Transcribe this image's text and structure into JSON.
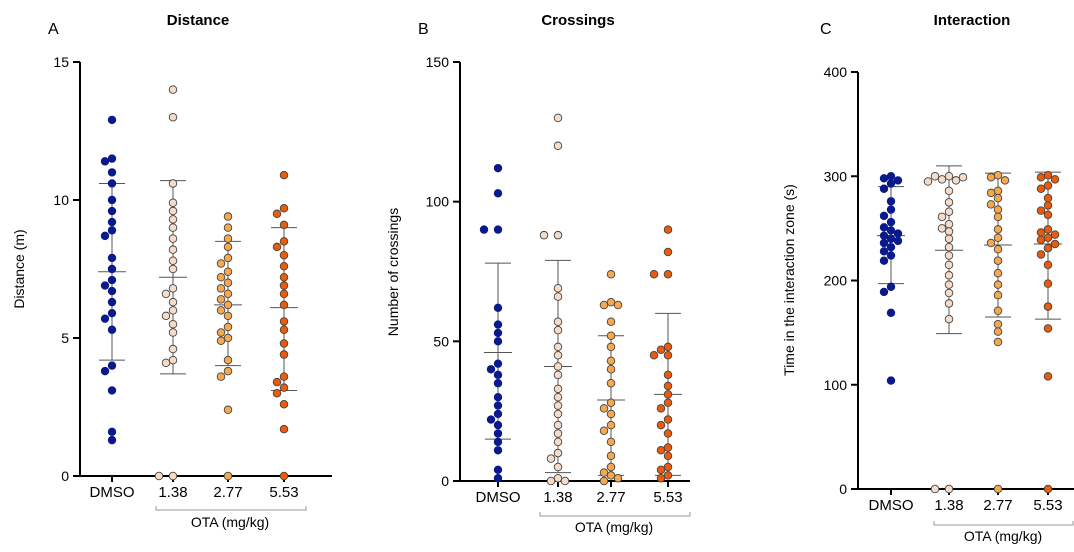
{
  "chart_data": [
    {
      "type": "scatter",
      "panel": "A",
      "title": "Distance",
      "ylabel": "Distance (m)",
      "ylim": [
        0,
        15
      ],
      "yticks": [
        "0",
        "5",
        "10",
        "15"
      ],
      "categories": [
        "DMSO",
        "1.38",
        "2.77",
        "5.53"
      ],
      "group_label": "OTA (mg/kg)",
      "series": [
        {
          "color": "#0a1a8c",
          "fill": true,
          "mean": 7.4,
          "sd_low": 4.2,
          "sd_high": 10.6,
          "values": [
            12.9,
            11.5,
            11.4,
            11.0,
            10.6,
            10.0,
            9.6,
            9.2,
            8.9,
            8.7,
            7.9,
            7.5,
            7.1,
            6.9,
            6.7,
            6.3,
            5.9,
            5.7,
            5.3,
            4.0,
            3.8,
            3.1,
            1.6,
            1.3
          ]
        },
        {
          "color": "#f6dcc8",
          "fill": true,
          "mean": 7.2,
          "sd_low": 3.7,
          "sd_high": 10.7,
          "values": [
            14.0,
            13.0,
            10.6,
            9.9,
            9.6,
            9.3,
            9.0,
            8.6,
            8.2,
            7.8,
            7.5,
            6.8,
            6.6,
            6.3,
            6.0,
            5.8,
            5.5,
            5.2,
            4.6,
            4.2,
            4.1,
            0.0,
            0.0
          ]
        },
        {
          "color": "#f7a84e",
          "fill": true,
          "mean": 6.2,
          "sd_low": 4.0,
          "sd_high": 8.5,
          "values": [
            9.4,
            9.0,
            8.6,
            8.3,
            7.9,
            7.7,
            7.4,
            7.2,
            7.0,
            6.8,
            6.6,
            6.4,
            6.2,
            6.0,
            5.8,
            5.4,
            5.2,
            5.0,
            4.9,
            4.2,
            3.8,
            3.6,
            2.4,
            0.0
          ]
        },
        {
          "color": "#ea5b0c",
          "fill": true,
          "mean": 6.1,
          "sd_low": 3.1,
          "sd_high": 9.0,
          "values": [
            10.9,
            9.7,
            9.5,
            9.1,
            8.5,
            8.3,
            8.0,
            7.6,
            7.2,
            6.9,
            6.6,
            6.2,
            5.6,
            5.3,
            4.8,
            4.4,
            3.6,
            3.4,
            3.2,
            3.0,
            2.6,
            1.7,
            0.0
          ]
        }
      ]
    },
    {
      "type": "scatter",
      "panel": "B",
      "title": "Crossings",
      "ylabel": "Number of crossings",
      "ylim": [
        0,
        150
      ],
      "yticks": [
        "0",
        "50",
        "100",
        "150"
      ],
      "categories": [
        "DMSO",
        "1.38",
        "2.77",
        "5.53"
      ],
      "group_label": "OTA (mg/kg)",
      "series": [
        {
          "color": "#0a1a8c",
          "fill": true,
          "mean": 46,
          "sd_low": 15,
          "sd_high": 78,
          "values": [
            112,
            103,
            90,
            90,
            62,
            56,
            53,
            50,
            42,
            40,
            38,
            35,
            30,
            27,
            24,
            22,
            20,
            17,
            14,
            11,
            4,
            1
          ]
        },
        {
          "color": "#f6dcc8",
          "fill": true,
          "mean": 41,
          "sd_low": 3,
          "sd_high": 79,
          "values": [
            130,
            120,
            88,
            88,
            69,
            66,
            57,
            54,
            48,
            45,
            41,
            38,
            33,
            30,
            27,
            24,
            20,
            17,
            14,
            10,
            8,
            5,
            1,
            0,
            0
          ]
        },
        {
          "color": "#f7a84e",
          "fill": true,
          "mean": 29,
          "sd_low": 2,
          "sd_high": 52,
          "values": [
            74,
            64,
            63,
            63,
            57,
            52,
            48,
            43,
            40,
            35,
            28,
            26,
            24,
            20,
            18,
            14,
            9,
            5,
            3,
            2,
            1,
            0
          ]
        },
        {
          "color": "#ea5b0c",
          "fill": true,
          "mean": 31,
          "sd_low": 2,
          "sd_high": 60,
          "values": [
            90,
            82,
            74,
            74,
            48,
            47,
            45,
            45,
            38,
            34,
            31,
            28,
            26,
            22,
            20,
            17,
            12,
            11,
            9,
            5,
            4,
            2,
            1
          ]
        }
      ]
    },
    {
      "type": "scatter",
      "panel": "C",
      "title": "Interaction",
      "ylabel": "Time in the interaction zone (s)",
      "ylim": [
        0,
        400
      ],
      "yticks": [
        "0",
        "100",
        "200",
        "300",
        "400"
      ],
      "categories": [
        "DMSO",
        "1.38",
        "2.77",
        "5.53"
      ],
      "group_label": "OTA (mg/kg)",
      "series": [
        {
          "color": "#0a1a8c",
          "fill": true,
          "mean": 243,
          "sd_low": 197,
          "sd_high": 290,
          "values": [
            300,
            298,
            296,
            293,
            288,
            276,
            268,
            262,
            256,
            251,
            248,
            245,
            243,
            240,
            238,
            236,
            232,
            228,
            224,
            219,
            194,
            189,
            169,
            104
          ]
        },
        {
          "color": "#f6dcc8",
          "fill": true,
          "mean": 229,
          "sd_low": 149,
          "sd_high": 310,
          "values": [
            300,
            300,
            299,
            297,
            296,
            295,
            286,
            275,
            266,
            261,
            254,
            250,
            247,
            240,
            232,
            224,
            215,
            205,
            196,
            188,
            178,
            163,
            0,
            0
          ]
        },
        {
          "color": "#f7a84e",
          "fill": true,
          "mean": 234,
          "sd_low": 165,
          "sd_high": 303,
          "values": [
            301,
            299,
            296,
            286,
            284,
            279,
            273,
            268,
            261,
            249,
            241,
            236,
            230,
            219,
            207,
            196,
            186,
            171,
            158,
            151,
            141,
            0
          ]
        },
        {
          "color": "#ea5b0c",
          "fill": true,
          "mean": 235,
          "sd_low": 163,
          "sd_high": 304,
          "values": [
            301,
            299,
            297,
            291,
            288,
            279,
            272,
            267,
            263,
            249,
            246,
            244,
            241,
            239,
            235,
            231,
            225,
            215,
            197,
            175,
            154,
            108,
            0
          ]
        }
      ]
    }
  ]
}
